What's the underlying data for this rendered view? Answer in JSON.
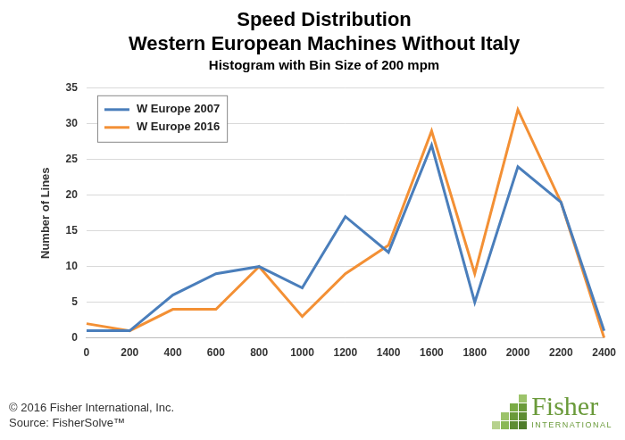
{
  "chart_data": {
    "type": "line",
    "title": [
      "Speed Distribution",
      "Western European Machines Without Italy"
    ],
    "subtitle": "Histogram with Bin Size of 200 mpm",
    "y_label": "Number of Lines",
    "categories": [
      0,
      200,
      400,
      600,
      800,
      1000,
      1200,
      1400,
      1600,
      1800,
      2000,
      2200,
      2400
    ],
    "series": [
      {
        "name": "W Europe 2007",
        "color": "#4a7ebb",
        "values": [
          1,
          1,
          6,
          9,
          10,
          7,
          17,
          12,
          27,
          5,
          24,
          19,
          1
        ]
      },
      {
        "name": "W Europe 2016",
        "color": "#f39035",
        "values": [
          2,
          1,
          4,
          4,
          10,
          3,
          9,
          13,
          29,
          9,
          32,
          19,
          0
        ]
      }
    ],
    "ylim": [
      0,
      35
    ],
    "yticks": [
      0,
      5,
      10,
      15,
      20,
      25,
      30,
      35
    ],
    "grid": true,
    "legend": "upper left",
    "annotations": [
      "© 2016 Fisher International, Inc.",
      "Source: FisherSolve™",
      "Fisher",
      "INTERNATIONAL"
    ]
  }
}
